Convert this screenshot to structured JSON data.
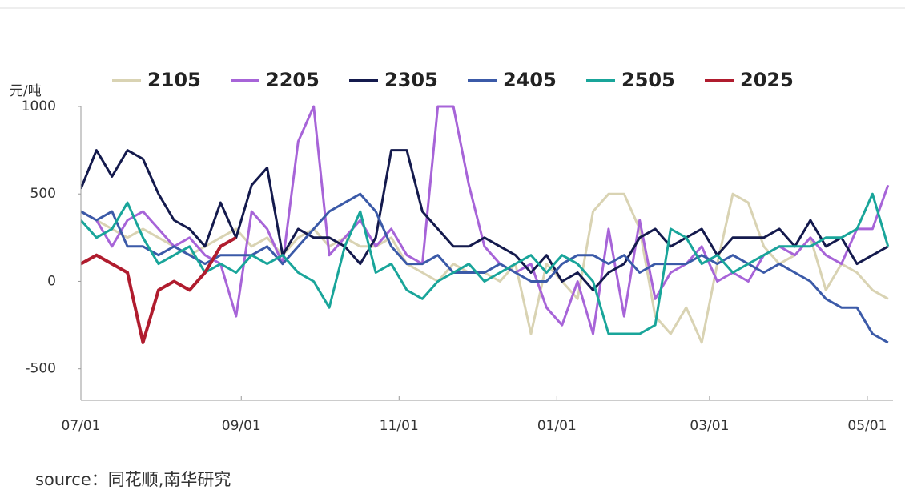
{
  "chart_data": {
    "type": "line",
    "y_unit_label": "元/吨",
    "source": "source：同花顺,南华研究",
    "x": [
      0,
      6,
      12,
      18,
      24,
      30,
      36,
      42,
      48,
      54,
      60,
      66,
      72,
      78,
      84,
      90,
      96,
      102,
      108,
      114,
      120,
      126,
      132,
      138,
      144,
      150,
      156,
      162,
      168,
      174,
      180,
      186,
      192,
      198,
      204,
      210,
      216,
      222,
      228,
      234,
      240,
      246,
      252,
      258,
      264,
      270,
      276,
      282,
      288,
      294,
      300,
      306,
      312
    ],
    "xlim": [
      0,
      313
    ],
    "xticks": [
      {
        "value": 0,
        "label": "07/01"
      },
      {
        "value": 62,
        "label": "09/01"
      },
      {
        "value": 123,
        "label": "11/01"
      },
      {
        "value": 184,
        "label": "01/01"
      },
      {
        "value": 243,
        "label": "03/01"
      },
      {
        "value": 304,
        "label": "05/01"
      }
    ],
    "ylim": [
      -680,
      1000
    ],
    "yticks": [
      -500,
      0,
      500,
      1000
    ],
    "series": [
      {
        "name": "2105",
        "color": "#d9d3b3",
        "values": [
          400,
          350,
          300,
          250,
          300,
          250,
          200,
          150,
          200,
          250,
          300,
          200,
          250,
          150,
          250,
          300,
          200,
          250,
          200,
          200,
          250,
          100,
          50,
          0,
          100,
          50,
          50,
          0,
          100,
          -300,
          100,
          0,
          -100,
          400,
          500,
          500,
          300,
          -200,
          -300,
          -150,
          -350,
          100,
          500,
          450,
          200,
          100,
          150,
          250,
          -50,
          100,
          50,
          -50,
          -100
        ]
      },
      {
        "name": "2205",
        "color": "#a764d8",
        "values": [
          400,
          350,
          200,
          350,
          400,
          300,
          200,
          250,
          150,
          100,
          -200,
          400,
          300,
          100,
          800,
          1000,
          150,
          250,
          350,
          200,
          300,
          150,
          100,
          1000,
          1000,
          550,
          200,
          100,
          50,
          100,
          -150,
          -250,
          0,
          -300,
          300,
          -200,
          350,
          -100,
          50,
          100,
          200,
          0,
          50,
          0,
          150,
          200,
          150,
          250,
          150,
          100,
          300,
          300,
          550
        ]
      },
      {
        "name": "2305",
        "color": "#141a4d",
        "values": [
          530,
          750,
          600,
          750,
          700,
          500,
          350,
          300,
          200,
          450,
          250,
          550,
          650,
          150,
          300,
          250,
          250,
          200,
          100,
          250,
          750,
          750,
          400,
          300,
          200,
          200,
          250,
          200,
          150,
          50,
          150,
          0,
          50,
          -50,
          50,
          100,
          250,
          300,
          200,
          250,
          300,
          150,
          250,
          250,
          250,
          300,
          200,
          350,
          200,
          250,
          100,
          150,
          200
        ]
      },
      {
        "name": "2405",
        "color": "#3b5aa8",
        "values": [
          400,
          350,
          400,
          200,
          200,
          150,
          200,
          150,
          100,
          150,
          150,
          150,
          200,
          100,
          200,
          300,
          400,
          450,
          500,
          400,
          200,
          100,
          100,
          150,
          50,
          50,
          50,
          100,
          50,
          0,
          0,
          100,
          150,
          150,
          100,
          150,
          50,
          100,
          100,
          100,
          150,
          100,
          150,
          100,
          50,
          100,
          50,
          0,
          -100,
          -150,
          -150,
          -300,
          -350
        ]
      },
      {
        "name": "2505",
        "color": "#19a59a",
        "values": [
          350,
          250,
          300,
          450,
          250,
          100,
          150,
          200,
          50,
          100,
          50,
          150,
          100,
          150,
          50,
          0,
          -150,
          200,
          400,
          50,
          100,
          -50,
          -100,
          0,
          50,
          100,
          0,
          50,
          100,
          150,
          50,
          150,
          100,
          0,
          -300,
          -300,
          -300,
          -250,
          300,
          250,
          100,
          150,
          50,
          100,
          150,
          200,
          200,
          200,
          250,
          250,
          300,
          500,
          200
        ]
      },
      {
        "name": "2025",
        "color": "#b01c2e",
        "values": [
          100,
          150,
          100,
          50,
          -350,
          -50,
          0,
          -50,
          50,
          200,
          250,
          null,
          null,
          null,
          null,
          null,
          null,
          null,
          null,
          null,
          null,
          null,
          null,
          null,
          null,
          null,
          null,
          null,
          null,
          null,
          null,
          null,
          null,
          null,
          null,
          null,
          null,
          null,
          null,
          null,
          null,
          null,
          null,
          null,
          null,
          null,
          null,
          null,
          null,
          null,
          null,
          null,
          null
        ]
      }
    ]
  }
}
